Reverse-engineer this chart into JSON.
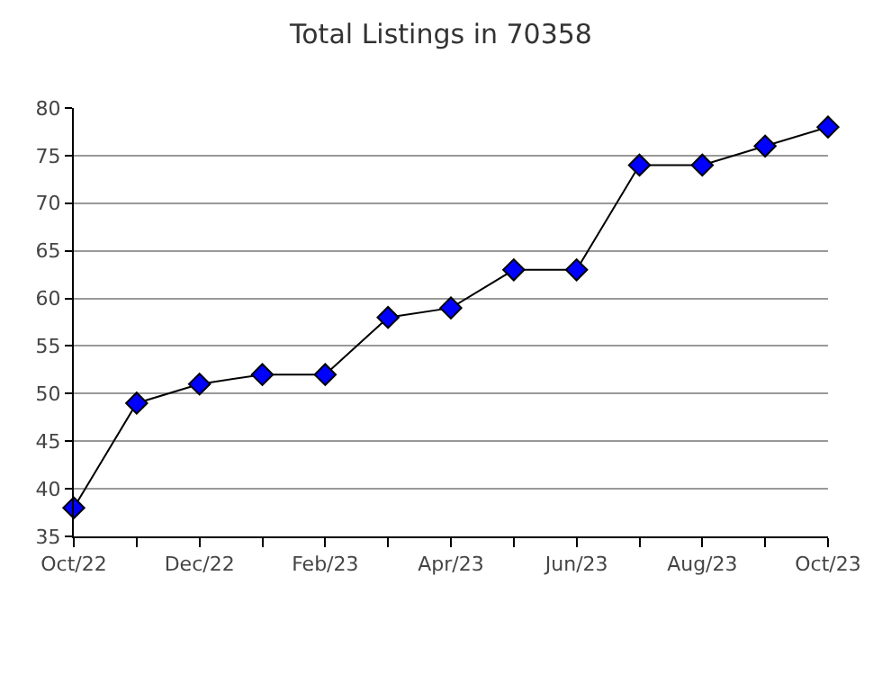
{
  "chart_data": {
    "type": "line",
    "title": "Total Listings in 70358",
    "categories": [
      "Oct/22",
      null,
      "Dec/22",
      null,
      "Feb/23",
      null,
      "Apr/23",
      null,
      "Jun/23",
      null,
      "Aug/23",
      null,
      "Oct/23"
    ],
    "series": [
      {
        "color": "#0000ff",
        "values": [
          38,
          49,
          51,
          52,
          52,
          58,
          59,
          63,
          63,
          74,
          74,
          76,
          78
        ]
      }
    ],
    "ylim": [
      35,
      80
    ],
    "yticks": [
      35,
      40,
      45,
      50,
      55,
      60,
      65,
      70,
      75,
      80
    ],
    "grid": "y",
    "marker": "diamond",
    "line_style": "solid"
  }
}
